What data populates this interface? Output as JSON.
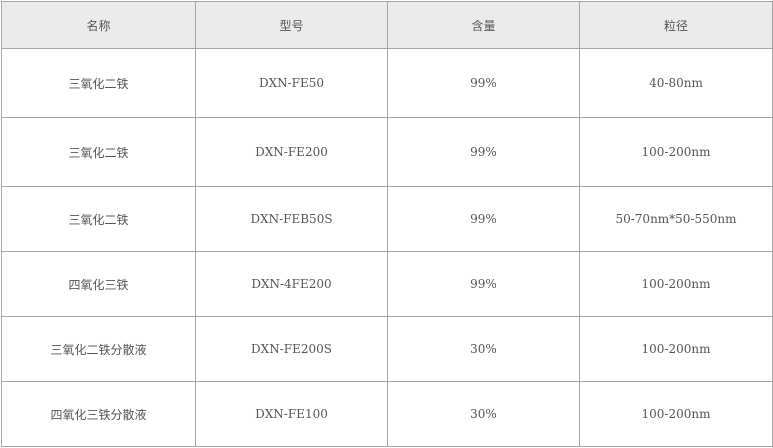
{
  "table": {
    "headers": [
      "名称",
      "型号",
      "含量",
      "粒径"
    ],
    "rows": [
      [
        "三氧化二铁",
        "DXN-FE50",
        "99%",
        "40-80nm"
      ],
      [
        "三氧化二铁",
        "DXN-FE200",
        "99%",
        "100-200nm"
      ],
      [
        "三氧化二铁",
        "DXN-FEB50S",
        "99%",
        "50-70nm*50-550nm"
      ],
      [
        "四氧化三铁",
        "DXN-4FE200",
        "99%",
        "100-200nm"
      ],
      [
        "三氧化二铁分散液",
        "DXN-FE200S",
        "30%",
        "100-200nm"
      ],
      [
        "四氧化三铁分散液",
        "DXN-FE100",
        "30%",
        "100-200nm"
      ]
    ]
  }
}
